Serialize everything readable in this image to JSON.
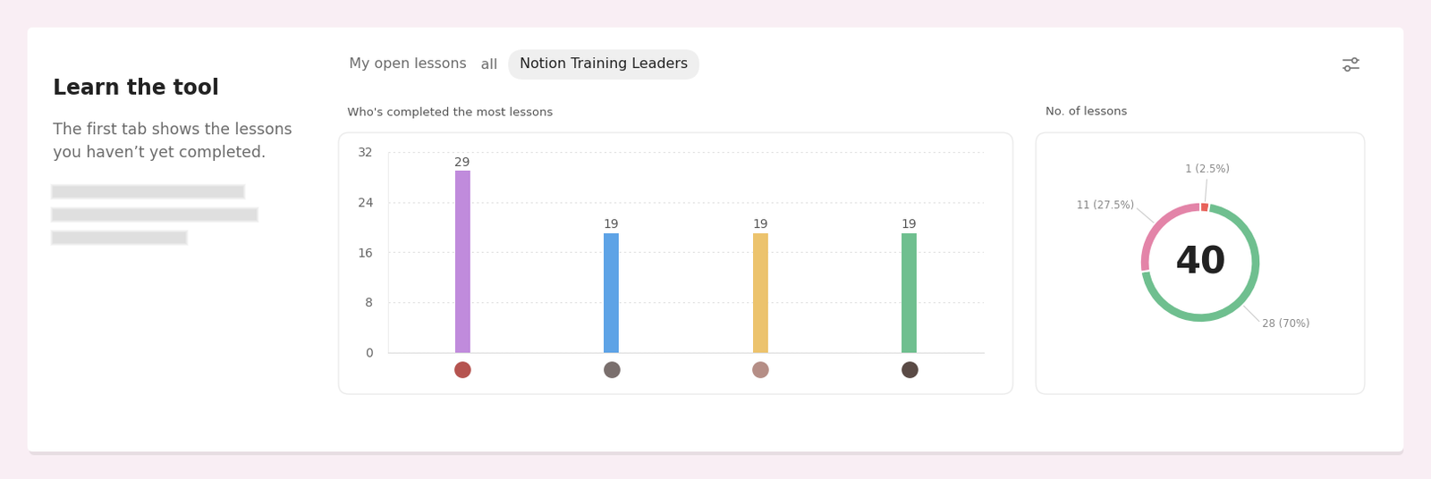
{
  "tabs": {
    "items": [
      "My open lessons",
      "all",
      "Notion Training Leaders"
    ],
    "selected": 2
  },
  "sidebar": {
    "title": "Learn the tool",
    "lines": [
      "The first tab shows the lessons",
      "you haven’t yet completed."
    ]
  },
  "chart_data": [
    {
      "type": "bar",
      "title": "Who's completed the most lessons",
      "categories": [
        null,
        null,
        null,
        null
      ],
      "values": [
        29,
        19,
        19,
        19
      ],
      "colors": [
        "#c08bdc",
        "#5ea3e6",
        "#ecc36d",
        "#6fbf8f"
      ],
      "ylim": [
        0,
        32
      ],
      "yticks": [
        0,
        8,
        16,
        24,
        32
      ],
      "grid": true,
      "data_labels": true,
      "tick_labels": "y"
    },
    {
      "type": "donut",
      "title": "No. of lessons",
      "total": 40,
      "values": [
        1,
        28,
        11
      ],
      "value_labels": [
        "1 (2.5%)",
        "28 (70%)",
        "11 (27.5%)"
      ],
      "colors": [
        "#e8625a",
        "#6fbf8f",
        "#e384a8"
      ]
    }
  ]
}
